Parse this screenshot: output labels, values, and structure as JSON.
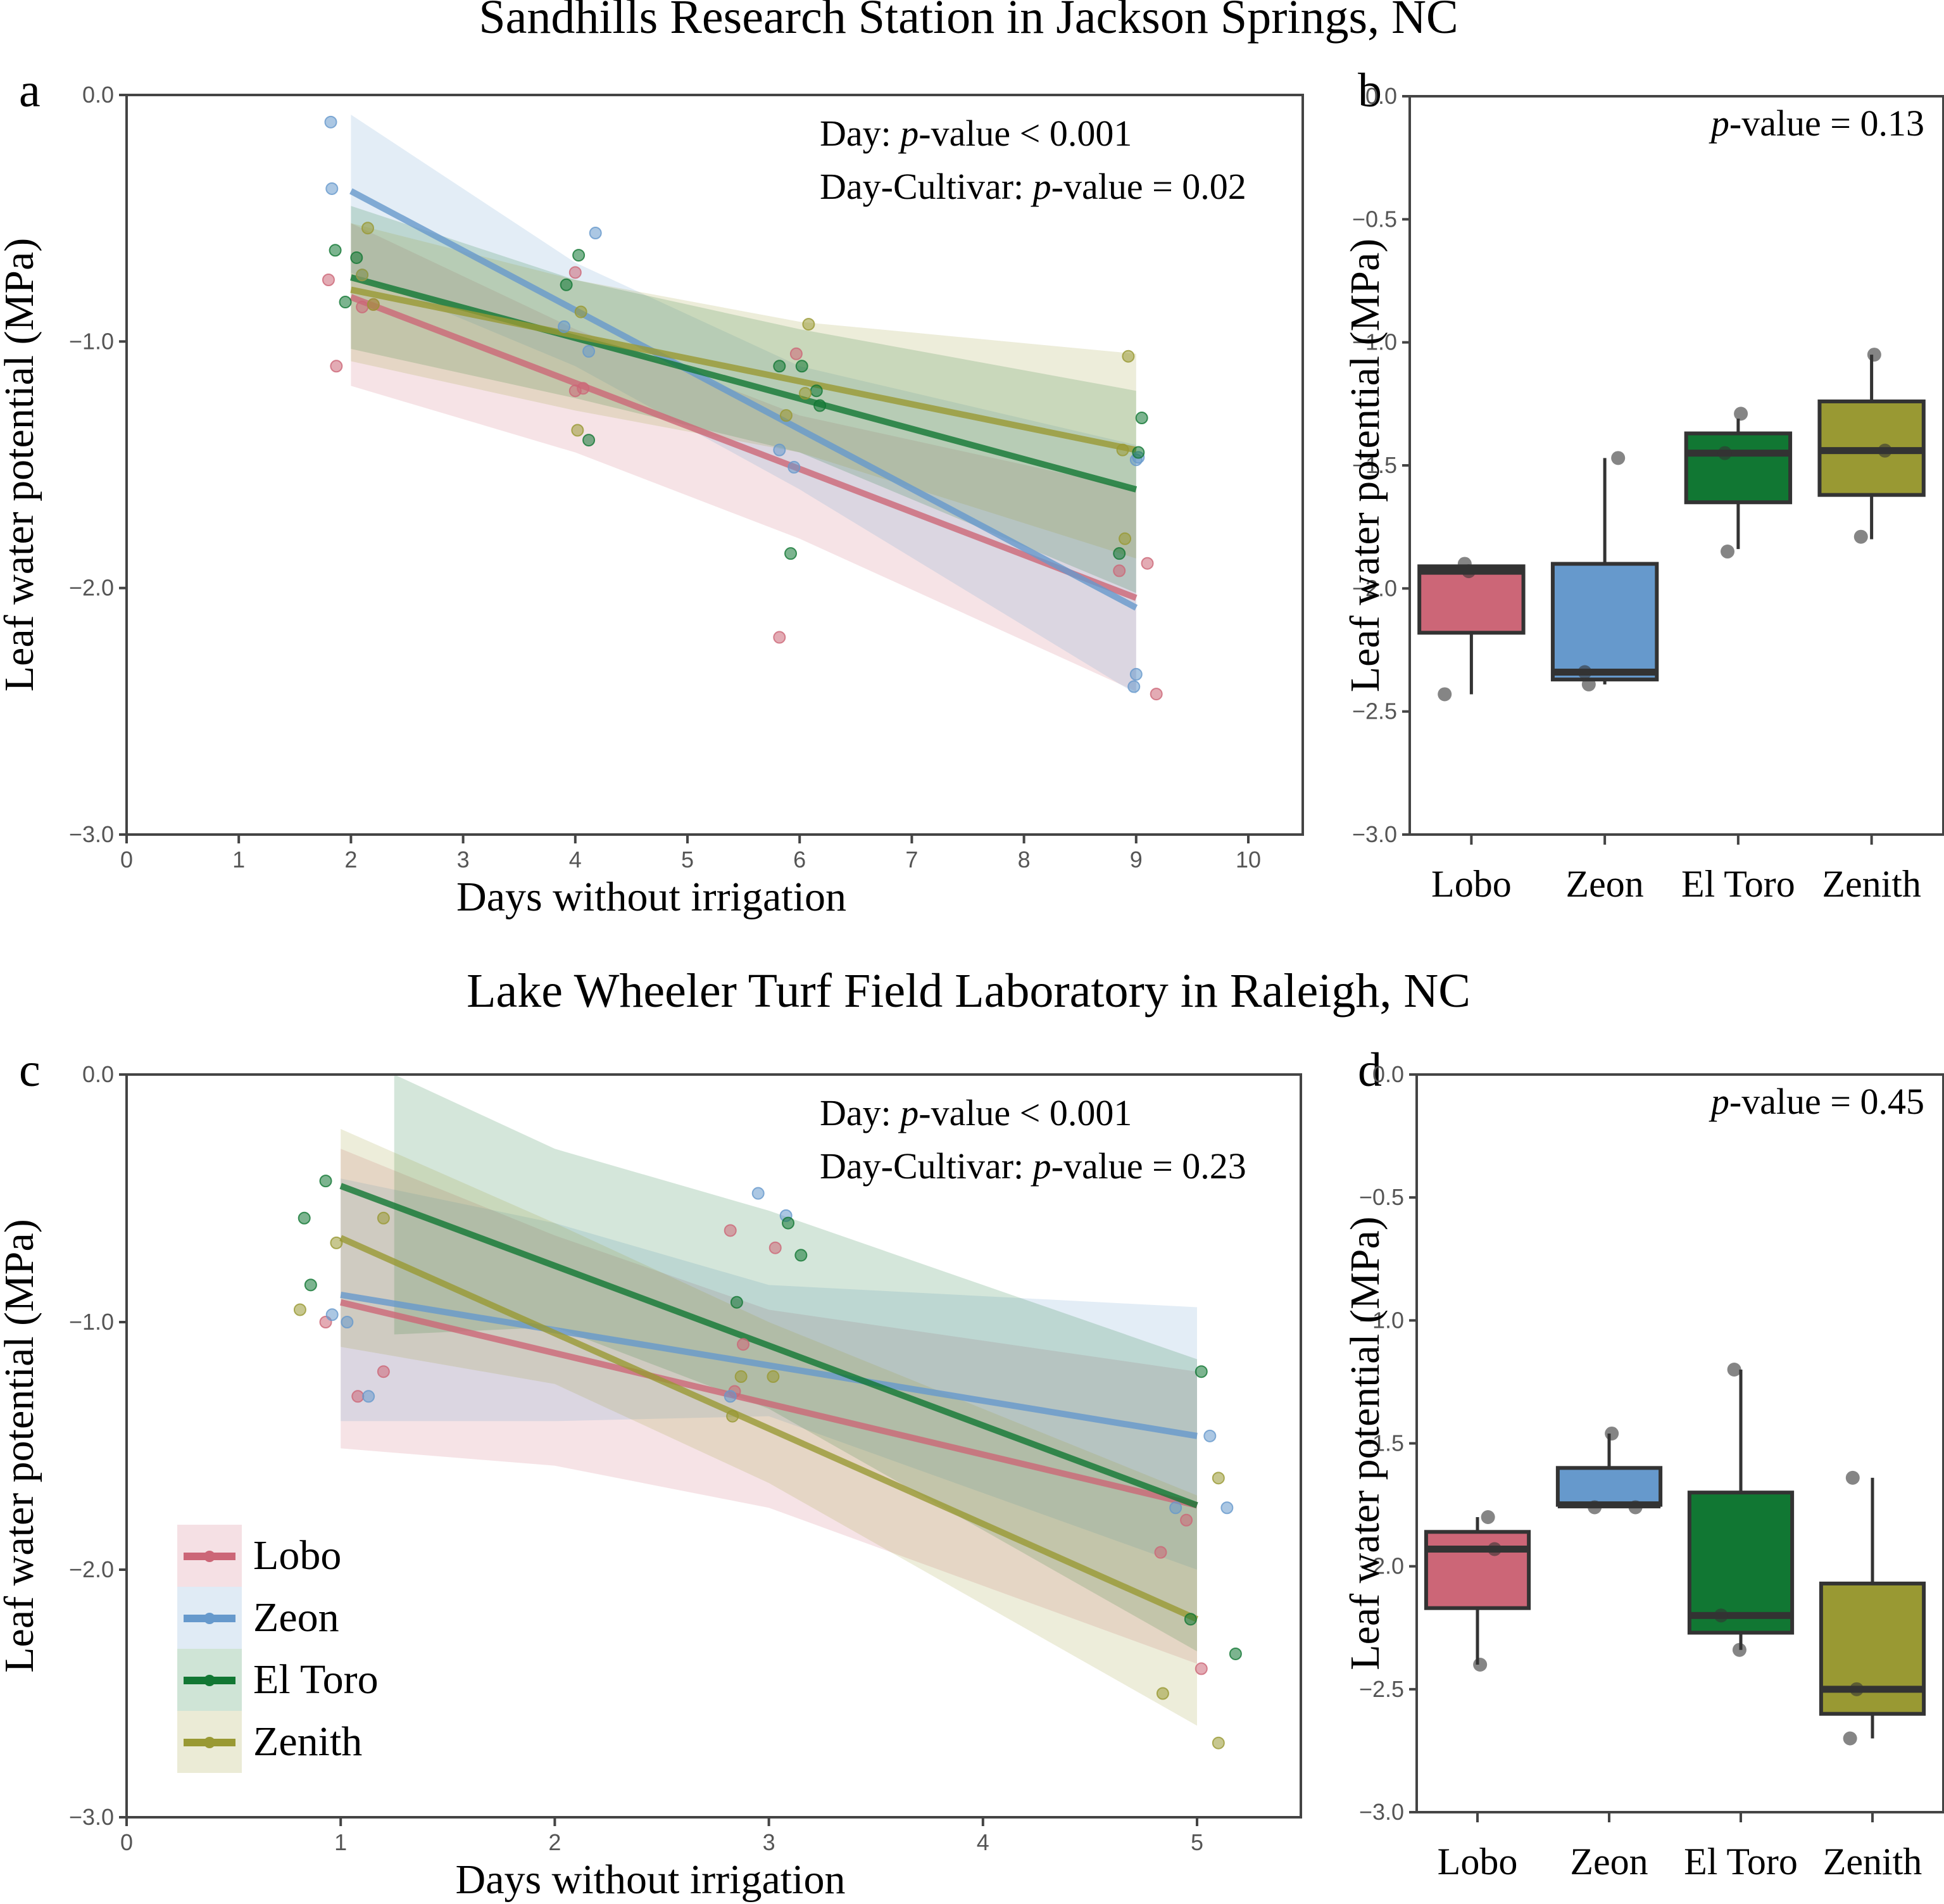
{
  "colors": {
    "Lobo": "#cc6677",
    "Zeon": "#6699cc",
    "El Toro": "#117733",
    "Zenith": "#999933",
    "box_point": "#555555",
    "box_outline": "#333333"
  },
  "sections": [
    {
      "title": "Sandhills Research Station in Jackson Springs, NC"
    },
    {
      "title": "Lake Wheeler Turf Field Laboratory in Raleigh, NC"
    }
  ],
  "legend": {
    "placement": "lower-left of panel c",
    "entries": [
      "Lobo",
      "Zeon",
      "El Toro",
      "Zenith"
    ]
  },
  "chart_data": [
    {
      "panel": "a",
      "type": "scatter",
      "title": "Sandhills Research Station in Jackson Springs, NC",
      "xlabel": "Days without irrigation",
      "ylabel": "Leaf water potential (MPa)",
      "xlim": [
        0,
        10.5
      ],
      "ylim": [
        -3.0,
        0.0
      ],
      "xticks": [
        "0",
        "1",
        "2",
        "3",
        "4",
        "5",
        "6",
        "7",
        "8",
        "9",
        "10"
      ],
      "yticks": [
        "0.0",
        "−1.0",
        "−2.0",
        "−3.0"
      ],
      "ytick_values": [
        0,
        -1,
        -2,
        -3
      ],
      "annotations": [
        "Day: p-value < 0.001",
        "Day-Cultivar: p-value = 0.02"
      ],
      "annotation_lines": [
        {
          "pre": "Day: ",
          "p": "p",
          "post": "-value < 0.001"
        },
        {
          "pre": "Day-Cultivar: ",
          "p": "p",
          "post": "-value = 0.02"
        }
      ],
      "series": [
        {
          "name": "Lobo",
          "fit": {
            "x": [
              2,
              9
            ],
            "y": [
              -0.82,
              -2.04
            ]
          },
          "ci": {
            "x": [
              2,
              4,
              6,
              9
            ],
            "upper": [
              -0.52,
              -0.95,
              -1.3,
              -1.6
            ],
            "lower": [
              -1.18,
              -1.45,
              -1.8,
              -2.42
            ]
          },
          "points": [
            [
              1.8,
              -0.75
            ],
            [
              1.87,
              -1.1
            ],
            [
              2.1,
              -0.86
            ],
            [
              2.2,
              -0.85
            ],
            [
              4.0,
              -0.72
            ],
            [
              4.0,
              -1.2
            ],
            [
              4.07,
              -1.19
            ],
            [
              5.82,
              -2.2
            ],
            [
              5.97,
              -1.05
            ],
            [
              8.85,
              -1.93
            ],
            [
              9.1,
              -1.9
            ],
            [
              9.18,
              -2.43
            ]
          ]
        },
        {
          "name": "Zeon",
          "fit": {
            "x": [
              2,
              9
            ],
            "y": [
              -0.39,
              -2.08
            ]
          },
          "ci": {
            "x": [
              2,
              4,
              6,
              9
            ],
            "upper": [
              -0.08,
              -0.68,
              -1.1,
              -1.42
            ],
            "lower": [
              -0.72,
              -1.1,
              -1.6,
              -2.43
            ]
          },
          "points": [
            [
              1.82,
              -0.11
            ],
            [
              1.83,
              -0.38
            ],
            [
              2.1,
              -0.73
            ],
            [
              3.9,
              -0.94
            ],
            [
              4.12,
              -1.04
            ],
            [
              4.18,
              -0.56
            ],
            [
              5.82,
              -1.44
            ],
            [
              5.95,
              -1.51
            ],
            [
              8.98,
              -2.4
            ],
            [
              9.0,
              -2.35
            ],
            [
              9.02,
              -1.47
            ],
            [
              9.0,
              -1.48
            ]
          ]
        },
        {
          "name": "El Toro",
          "fit": {
            "x": [
              2,
              9
            ],
            "y": [
              -0.74,
              -1.6
            ]
          },
          "ci": {
            "x": [
              2,
              4,
              6,
              9
            ],
            "upper": [
              -0.45,
              -0.75,
              -0.95,
              -1.2
            ],
            "lower": [
              -1.03,
              -1.23,
              -1.45,
              -2.02
            ]
          },
          "points": [
            [
              1.86,
              -0.63
            ],
            [
              1.95,
              -0.84
            ],
            [
              2.05,
              -0.66
            ],
            [
              3.92,
              -0.77
            ],
            [
              4.03,
              -0.65
            ],
            [
              4.12,
              -1.4
            ],
            [
              5.82,
              -1.1
            ],
            [
              5.92,
              -1.86
            ],
            [
              6.02,
              -1.1
            ],
            [
              6.15,
              -1.2
            ],
            [
              6.18,
              -1.26
            ],
            [
              8.85,
              -1.86
            ],
            [
              9.02,
              -1.45
            ],
            [
              9.05,
              -1.31
            ]
          ]
        },
        {
          "name": "Zenith",
          "fit": {
            "x": [
              2,
              9
            ],
            "y": [
              -0.79,
              -1.44
            ]
          },
          "ci": {
            "x": [
              2,
              4,
              6,
              9
            ],
            "upper": [
              -0.52,
              -0.75,
              -0.92,
              -1.05
            ],
            "lower": [
              -1.08,
              -1.28,
              -1.45,
              -1.88
            ]
          },
          "points": [
            [
              2.1,
              -0.73
            ],
            [
              2.15,
              -0.54
            ],
            [
              2.2,
              -0.85
            ],
            [
              4.02,
              -1.36
            ],
            [
              4.05,
              -0.88
            ],
            [
              5.88,
              -1.3
            ],
            [
              6.08,
              -0.93
            ],
            [
              6.05,
              -1.21
            ],
            [
              8.88,
              -1.44
            ],
            [
              8.9,
              -1.8
            ],
            [
              8.93,
              -1.06
            ]
          ]
        }
      ]
    },
    {
      "panel": "b",
      "type": "box",
      "xlabel": "",
      "ylabel": "Leaf water potential (MPa)",
      "ylim": [
        -3.0,
        0.0
      ],
      "yticks": [
        "0.0",
        "−0.5",
        "−1.0",
        "−1.5",
        "−2.0",
        "−2.5",
        "−3.0"
      ],
      "ytick_values": [
        0,
        -0.5,
        -1,
        -1.5,
        -2,
        -2.5,
        -3
      ],
      "categories": [
        "Lobo",
        "Zeon",
        "El Toro",
        "Zenith"
      ],
      "annotation": {
        "p": "p",
        "post": "-value = 0.13"
      },
      "boxes": [
        {
          "name": "Lobo",
          "q1": -2.18,
          "median": -1.93,
          "q3": -1.91,
          "whisker_low": -2.43,
          "whisker_high": -1.91,
          "points": [
            [
              -0.05,
              -1.9
            ],
            [
              -0.02,
              -1.93
            ],
            [
              -0.2,
              -2.43
            ]
          ]
        },
        {
          "name": "Zeon",
          "q1": -2.37,
          "median": -2.34,
          "q3": -1.9,
          "whisker_low": -2.39,
          "whisker_high": -1.47,
          "points": [
            [
              0.1,
              -1.47
            ],
            [
              -0.15,
              -2.34
            ],
            [
              -0.12,
              -2.39
            ]
          ]
        },
        {
          "name": "El Toro",
          "q1": -1.65,
          "median": -1.45,
          "q3": -1.37,
          "whisker_low": -1.84,
          "whisker_high": -1.31,
          "points": [
            [
              0.02,
              -1.29
            ],
            [
              -0.1,
              -1.45
            ],
            [
              -0.08,
              -1.85
            ]
          ]
        },
        {
          "name": "Zenith",
          "q1": -1.62,
          "median": -1.44,
          "q3": -1.24,
          "whisker_low": -1.8,
          "whisker_high": -1.05,
          "points": [
            [
              0.02,
              -1.05
            ],
            [
              0.1,
              -1.44
            ],
            [
              -0.08,
              -1.79
            ]
          ]
        }
      ]
    },
    {
      "panel": "c",
      "type": "scatter",
      "title": "Lake Wheeler Turf Field Laboratory in Raleigh, NC",
      "xlabel": "Days without irrigation",
      "ylabel": "Leaf water potential (MPa)",
      "xlim": [
        0,
        5.5
      ],
      "ylim": [
        -3.0,
        0.0
      ],
      "xticks": [
        "0",
        "1",
        "2",
        "3",
        "4",
        "5"
      ],
      "yticks": [
        "0.0",
        "−1.0",
        "−2.0",
        "−3.0"
      ],
      "ytick_values": [
        0,
        -1,
        -2,
        -3
      ],
      "annotation_lines": [
        {
          "pre": "Day: ",
          "p": "p",
          "post": "-value < 0.001"
        },
        {
          "pre": "Day-Cultivar: ",
          "p": "p",
          "post": "-value = 0.23"
        }
      ],
      "series": [
        {
          "name": "Lobo",
          "fit": {
            "x": [
              1,
              5
            ],
            "y": [
              -0.92,
              -1.74
            ]
          },
          "ci": {
            "x": [
              1,
              2,
              3,
              5
            ],
            "upper": [
              -0.3,
              -0.65,
              -0.95,
              -1.2
            ],
            "lower": [
              -1.51,
              -1.58,
              -1.75,
              -2.38
            ]
          },
          "points": [
            [
              0.93,
              -1.0
            ],
            [
              1.08,
              -1.3
            ],
            [
              1.2,
              -1.2
            ],
            [
              2.82,
              -0.63
            ],
            [
              2.88,
              -1.09
            ],
            [
              2.84,
              -1.28
            ],
            [
              3.03,
              -0.7
            ],
            [
              4.83,
              -1.93
            ],
            [
              4.95,
              -1.8
            ],
            [
              5.02,
              -2.4
            ]
          ]
        },
        {
          "name": "Zeon",
          "fit": {
            "x": [
              1,
              5
            ],
            "y": [
              -0.89,
              -1.46
            ]
          },
          "ci": {
            "x": [
              1,
              2,
              3,
              5
            ],
            "upper": [
              -0.42,
              -0.6,
              -0.85,
              -0.94
            ],
            "lower": [
              -1.4,
              -1.4,
              -1.38,
              -2.0
            ]
          },
          "points": [
            [
              0.96,
              -0.97
            ],
            [
              1.03,
              -1.0
            ],
            [
              1.13,
              -1.3
            ],
            [
              2.95,
              -0.48
            ],
            [
              3.08,
              -0.57
            ],
            [
              2.82,
              -1.3
            ],
            [
              4.9,
              -1.75
            ],
            [
              5.06,
              -1.46
            ],
            [
              5.14,
              -1.75
            ]
          ]
        },
        {
          "name": "El Toro",
          "fit": {
            "x": [
              1,
              5
            ],
            "y": [
              -0.45,
              -1.74
            ]
          },
          "ci": {
            "x": [
              1.25,
              2,
              3,
              5
            ],
            "upper": [
              0.0,
              -0.3,
              -0.55,
              -1.15
            ],
            "lower": [
              -1.05,
              -1.02,
              -1.35,
              -2.33
            ]
          },
          "points": [
            [
              0.83,
              -0.58
            ],
            [
              0.86,
              -0.85
            ],
            [
              0.93,
              -0.43
            ],
            [
              2.85,
              -0.92
            ],
            [
              3.09,
              -0.6
            ],
            [
              3.15,
              -0.73
            ],
            [
              4.97,
              -2.2
            ],
            [
              5.02,
              -1.2
            ],
            [
              5.18,
              -2.34
            ]
          ]
        },
        {
          "name": "Zenith",
          "fit": {
            "x": [
              1,
              5
            ],
            "y": [
              -0.66,
              -2.2
            ]
          },
          "ci": {
            "x": [
              1,
              2,
              3,
              5
            ],
            "upper": [
              -0.22,
              -0.6,
              -1.0,
              -1.7
            ],
            "lower": [
              -1.1,
              -1.25,
              -1.65,
              -2.63
            ]
          },
          "points": [
            [
              0.81,
              -0.95
            ],
            [
              0.98,
              -0.68
            ],
            [
              1.2,
              -0.58
            ],
            [
              2.83,
              -1.38
            ],
            [
              2.87,
              -1.22
            ],
            [
              3.02,
              -1.22
            ],
            [
              4.84,
              -2.5
            ],
            [
              5.1,
              -1.63
            ],
            [
              5.1,
              -2.7
            ]
          ]
        }
      ]
    },
    {
      "panel": "d",
      "type": "box",
      "ylabel": "Leaf water potential (MPa)",
      "ylim": [
        -3.0,
        0.0
      ],
      "yticks": [
        "0.0",
        "−0.5",
        "−1.0",
        "−1.5",
        "−2.0",
        "−2.5",
        "−3.0"
      ],
      "ytick_values": [
        0,
        -0.5,
        -1,
        -1.5,
        -2,
        -2.5,
        -3
      ],
      "categories": [
        "Lobo",
        "Zeon",
        "El Toro",
        "Zenith"
      ],
      "annotation": {
        "p": "p",
        "post": "-value = 0.45"
      },
      "boxes": [
        {
          "name": "Lobo",
          "q1": -2.17,
          "median": -1.93,
          "q3": -1.86,
          "whisker_low": -2.4,
          "whisker_high": -1.8,
          "points": [
            [
              0.08,
              -1.8
            ],
            [
              0.13,
              -1.93
            ],
            [
              0.02,
              -2.4
            ]
          ]
        },
        {
          "name": "Zeon",
          "q1": -1.75,
          "median": -1.75,
          "q3": -1.6,
          "whisker_low": -1.75,
          "whisker_high": -1.46,
          "points": [
            [
              0.02,
              -1.46
            ],
            [
              -0.11,
              -1.76
            ],
            [
              0.2,
              -1.76
            ]
          ]
        },
        {
          "name": "El Toro",
          "q1": -2.27,
          "median": -2.2,
          "q3": -1.7,
          "whisker_low": -2.34,
          "whisker_high": -1.2,
          "points": [
            [
              -0.05,
              -1.2
            ],
            [
              -0.15,
              -2.2
            ],
            [
              -0.01,
              -2.34
            ]
          ]
        },
        {
          "name": "Zenith",
          "q1": -2.6,
          "median": -2.5,
          "q3": -2.07,
          "whisker_low": -2.7,
          "whisker_high": -1.64,
          "points": [
            [
              -0.15,
              -1.64
            ],
            [
              -0.12,
              -2.5
            ],
            [
              -0.17,
              -2.7
            ]
          ]
        }
      ]
    }
  ]
}
